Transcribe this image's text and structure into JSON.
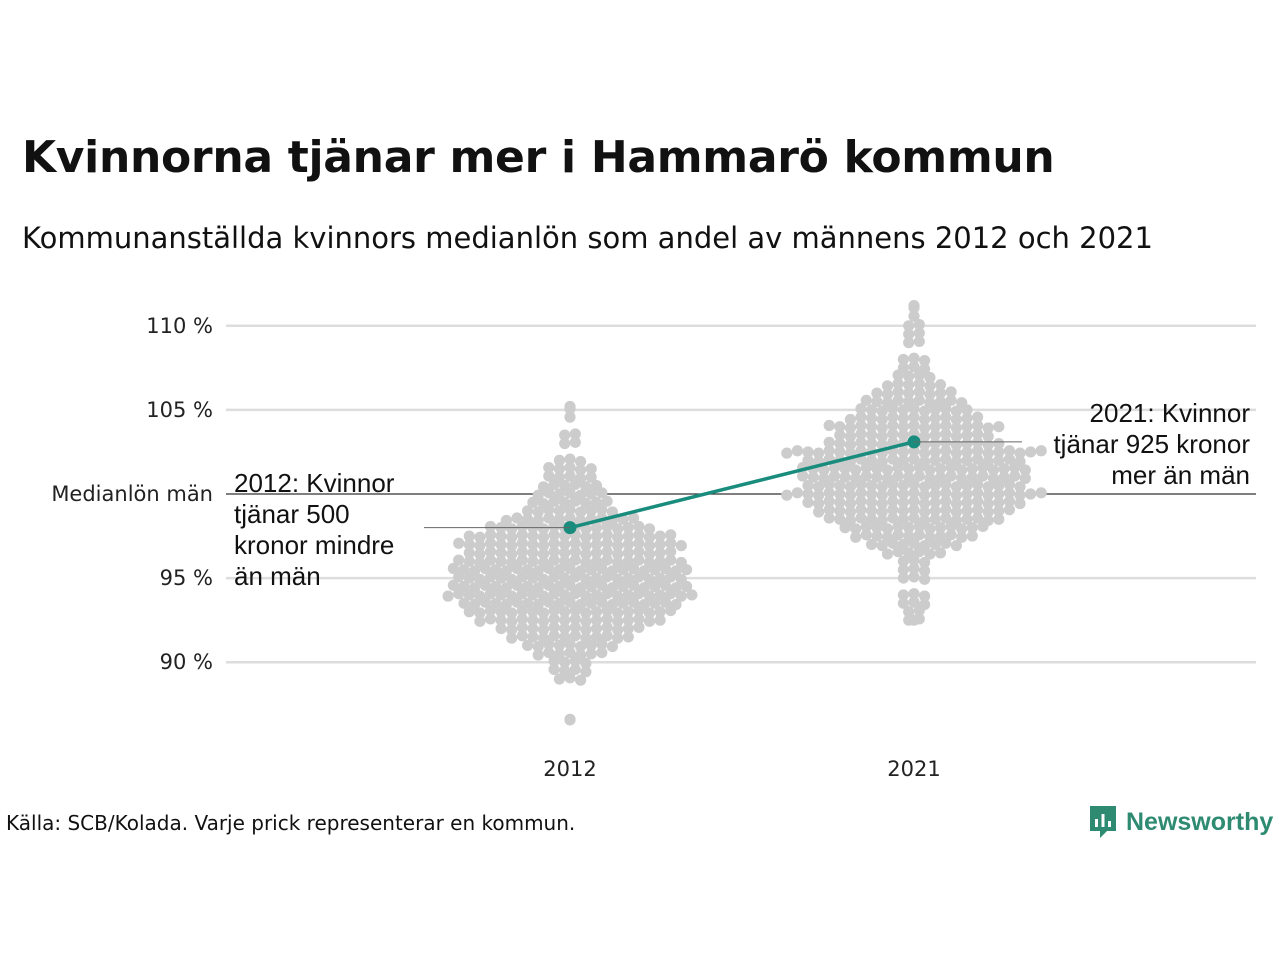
{
  "title": "Kvinnorna tjänar mer i Hammarö kommun",
  "subtitle": "Kommunanställda kvinnors medianlön som andel av männens 2012 och 2021",
  "footer": "Källa: SCB/Kolada. Varje prick representerar en kommun.",
  "logo_text": "Newsworthy",
  "colors": {
    "dots": "#cccccc",
    "highlight": "#1a8c7e",
    "grid": "#dddddd",
    "reference": "#333333",
    "logo": "#2f8a72"
  },
  "chart_data": {
    "type": "scatter",
    "subtype": "beeswarm",
    "categories": [
      "2012",
      "2021"
    ],
    "ylim": [
      86,
      111.5
    ],
    "yticks": [
      {
        "value": 90,
        "label": "90 %"
      },
      {
        "value": 95,
        "label": "95 %"
      },
      {
        "value": 105,
        "label": "105 %"
      },
      {
        "value": 110,
        "label": "110 %"
      }
    ],
    "reference_line": {
      "value": 100,
      "label": "Medianlön män"
    },
    "highlight": {
      "name": "Hammarö",
      "values": [
        {
          "x": "2012",
          "y": 98
        },
        {
          "x": "2021",
          "y": 103.1
        }
      ]
    },
    "annotations": [
      {
        "x": "2012",
        "lines": [
          "2012: Kvinnor",
          "tjänar 500",
          "kronor mindre",
          "än män"
        ]
      },
      {
        "x": "2021",
        "lines": [
          "2021: Kvinnor",
          "tjänar 925 kronor",
          "mer än män"
        ]
      }
    ],
    "distribution": [
      {
        "x": "2012",
        "min": 86.6,
        "max": 105.2,
        "bins": [
          [
            86.5,
            1
          ],
          [
            89,
            3
          ],
          [
            89.5,
            4
          ],
          [
            90,
            4
          ],
          [
            90.5,
            7
          ],
          [
            91,
            9
          ],
          [
            91.5,
            12
          ],
          [
            92,
            14
          ],
          [
            92.5,
            18
          ],
          [
            93,
            20
          ],
          [
            93.5,
            21
          ],
          [
            94,
            24
          ],
          [
            94.5,
            23
          ],
          [
            95,
            22
          ],
          [
            95.5,
            23
          ],
          [
            96,
            22
          ],
          [
            96.5,
            20
          ],
          [
            97,
            22
          ],
          [
            97.5,
            20
          ],
          [
            98,
            16
          ],
          [
            98.5,
            13
          ],
          [
            99,
            9
          ],
          [
            99.5,
            8
          ],
          [
            100,
            7
          ],
          [
            100.5,
            6
          ],
          [
            101,
            5
          ],
          [
            101.5,
            5
          ],
          [
            102,
            3
          ],
          [
            103,
            2
          ],
          [
            103.5,
            2
          ],
          [
            104.5,
            1
          ],
          [
            105,
            1
          ]
        ]
      },
      {
        "x": "2021",
        "min": 92.5,
        "max": 111.2,
        "bins": [
          [
            92.5,
            2
          ],
          [
            93,
            2
          ],
          [
            93.5,
            3
          ],
          [
            94,
            3
          ],
          [
            95,
            3
          ],
          [
            95.5,
            3
          ],
          [
            96,
            3
          ],
          [
            96.5,
            6
          ],
          [
            97,
            9
          ],
          [
            97.5,
            12
          ],
          [
            98,
            14
          ],
          [
            98.5,
            17
          ],
          [
            99,
            19
          ],
          [
            99.5,
            21
          ],
          [
            100,
            25
          ],
          [
            100.5,
            21
          ],
          [
            101,
            22
          ],
          [
            101.5,
            22
          ],
          [
            102,
            21
          ],
          [
            102.5,
            25
          ],
          [
            103,
            17
          ],
          [
            103.5,
            15
          ],
          [
            104,
            17
          ],
          [
            104.5,
            13
          ],
          [
            105,
            11
          ],
          [
            105.5,
            10
          ],
          [
            106,
            8
          ],
          [
            106.5,
            6
          ],
          [
            107,
            4
          ],
          [
            107.5,
            3
          ],
          [
            108,
            3
          ],
          [
            109,
            2
          ],
          [
            109.5,
            2
          ],
          [
            110,
            2
          ],
          [
            110.5,
            1
          ],
          [
            111,
            1
          ]
        ]
      }
    ]
  }
}
